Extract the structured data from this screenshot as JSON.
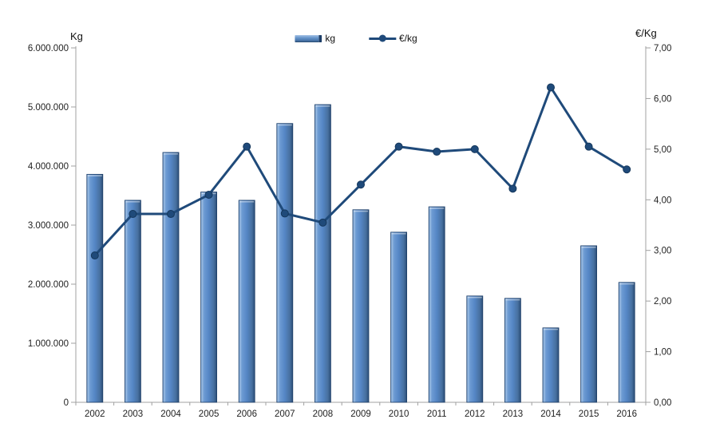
{
  "chart_data": {
    "type": "combo",
    "categories": [
      "2002",
      "2003",
      "2004",
      "2005",
      "2006",
      "2007",
      "2008",
      "2009",
      "2010",
      "2011",
      "2012",
      "2013",
      "2014",
      "2015",
      "2016"
    ],
    "series": [
      {
        "name": "kg",
        "type": "bar",
        "axis": "left",
        "values": [
          3860000,
          3420000,
          4230000,
          3560000,
          3420000,
          4720000,
          5040000,
          3260000,
          2880000,
          3310000,
          1800000,
          1760000,
          1260000,
          2650000,
          2030000
        ]
      },
      {
        "name": "€/kg",
        "type": "line",
        "axis": "right",
        "values": [
          2.9,
          3.72,
          3.72,
          4.1,
          5.05,
          3.73,
          3.55,
          4.3,
          5.05,
          4.95,
          5.0,
          4.22,
          6.22,
          5.05,
          4.6
        ]
      }
    ],
    "left_axis": {
      "title": "Kg",
      "min": 0,
      "max": 6000000,
      "tick_labels": [
        "0",
        "1.000.000",
        "2.000.000",
        "3.000.000",
        "4.000.000",
        "5.000.000",
        "6.000.000"
      ]
    },
    "right_axis": {
      "title": "€/Kg",
      "min": 0,
      "max": 7,
      "tick_labels": [
        "0,00",
        "1,00",
        "2,00",
        "3,00",
        "4,00",
        "5,00",
        "6,00",
        "7,00"
      ]
    },
    "legend": {
      "position": "top-center",
      "entries": [
        "kg",
        "€/kg"
      ]
    },
    "grid": "off",
    "colors": {
      "bar_mid": "#5586c5",
      "bar_light": "#9cbde2",
      "bar_dark": "#2b4d77",
      "bar_border": "#1d3e68",
      "line": "#1f4a7a",
      "marker_stroke": "#16385c",
      "axis": "#a0a0a0",
      "tick_text": "#1f1f1f"
    }
  }
}
